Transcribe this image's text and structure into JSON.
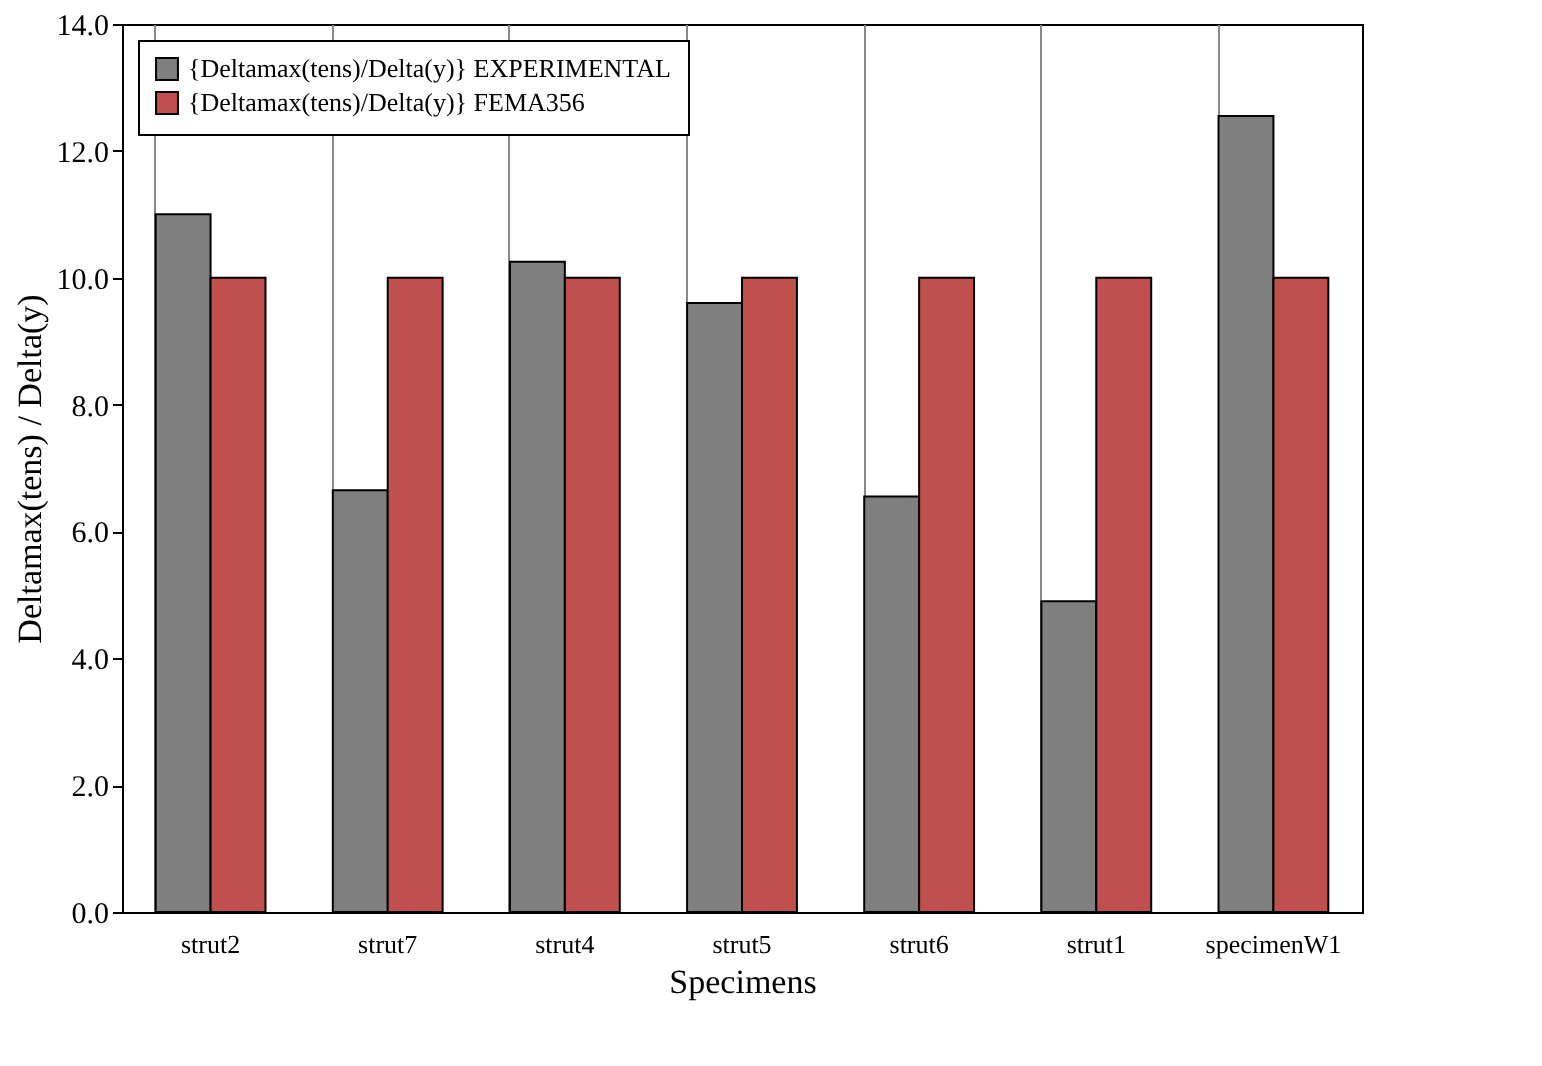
{
  "chart_data": {
    "type": "bar",
    "xlabel": "Specimens",
    "ylabel": "Deltamax(tens) / Delta(y)",
    "categories": [
      "strut2",
      "strut7",
      "strut4",
      "strut5",
      "strut6",
      "strut1",
      "specimenW1"
    ],
    "series": [
      {
        "name": "{Deltamax(tens)/Delta(y)} EXPERIMENTAL",
        "color": "#7f7f7f",
        "values": [
          11.0,
          6.65,
          10.25,
          9.6,
          6.55,
          4.9,
          12.55
        ]
      },
      {
        "name": "{Deltamax(tens)/Delta(y)} FEMA356",
        "color": "#c0504d",
        "values": [
          10,
          10,
          10,
          10,
          10,
          10,
          10
        ]
      }
    ],
    "ylim": [
      0,
      14
    ],
    "yticks": [
      {
        "value": 0,
        "label": "0.0"
      },
      {
        "value": 2,
        "label": "2.0"
      },
      {
        "value": 4,
        "label": "4.0"
      },
      {
        "value": 6,
        "label": "6.0"
      },
      {
        "value": 8,
        "label": "8.0"
      },
      {
        "value": 10,
        "label": "10.0"
      },
      {
        "value": 12,
        "label": "12.0"
      },
      {
        "value": 14,
        "label": "14.0"
      }
    ],
    "grid": "x",
    "legend": "top left"
  }
}
